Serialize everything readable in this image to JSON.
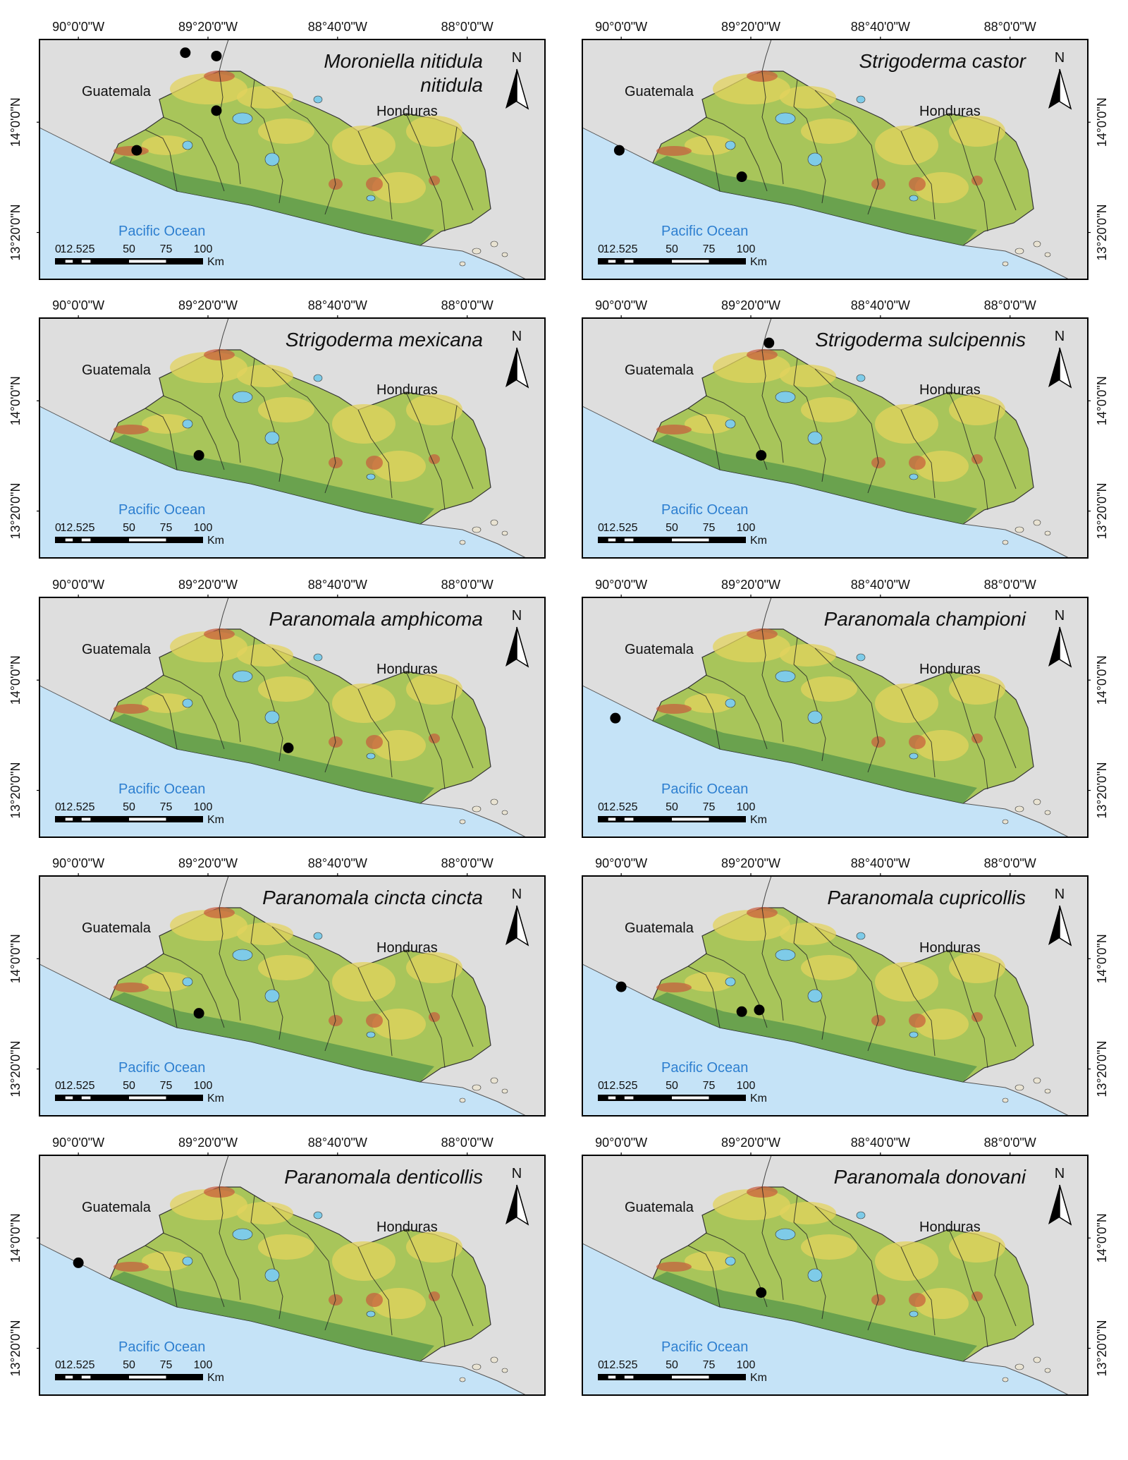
{
  "figure": {
    "lon_ticks": [
      "90°0'0\"W",
      "89°20'0\"W",
      "88°40'0\"W",
      "88°0'0\"W"
    ],
    "lat_ticks": [
      "14°0'0\"N",
      "13°20'0\"N"
    ],
    "labels": {
      "guatemala": "Guatemala",
      "honduras": "Honduras",
      "ocean": "Pacific Ocean",
      "north": "N",
      "scale_numbers": [
        "0",
        "12.525",
        "50",
        "75",
        "100"
      ],
      "scale_unit": "Km"
    },
    "colors": {
      "ocean": "#c5e3f7",
      "land_outside": "#dedede",
      "terrain_low": "#5f9b4c",
      "terrain_mid": "#a8c55a",
      "terrain_high": "#e3d35e",
      "terrain_peak": "#c85a3c",
      "lake": "#7ecbe8",
      "ocean_label": "#2d7fd0",
      "marker": "#000000"
    }
  },
  "panels": [
    {
      "title_lines": [
        "Moroniella nitidula",
        "nitidula"
      ],
      "records": [
        {
          "lon": -89.45,
          "lat": 14.42
        },
        {
          "lon": -89.29,
          "lat": 14.4
        },
        {
          "lon": -89.29,
          "lat": 14.07
        },
        {
          "lon": -89.7,
          "lat": 13.83
        }
      ]
    },
    {
      "title_lines": [
        "Strigoderma castor"
      ],
      "records": [
        {
          "lon": -90.01,
          "lat": 13.83
        },
        {
          "lon": -89.38,
          "lat": 13.67
        }
      ]
    },
    {
      "title_lines": [
        "Strigoderma mexicana"
      ],
      "records": [
        {
          "lon": -89.38,
          "lat": 13.67
        }
      ]
    },
    {
      "title_lines": [
        "Strigoderma sulcipennis"
      ],
      "records": [
        {
          "lon": -89.24,
          "lat": 14.35
        },
        {
          "lon": -89.28,
          "lat": 13.67
        }
      ]
    },
    {
      "title_lines": [
        "Paranomala amphicoma"
      ],
      "records": [
        {
          "lon": -88.92,
          "lat": 13.59
        }
      ]
    },
    {
      "title_lines": [
        "Paranomala championi"
      ],
      "records": [
        {
          "lon": -90.03,
          "lat": 13.77
        }
      ]
    },
    {
      "title_lines": [
        "Paranomala cincta cincta"
      ],
      "records": [
        {
          "lon": -89.38,
          "lat": 13.67
        }
      ]
    },
    {
      "title_lines": [
        "Paranomala cupricollis"
      ],
      "records": [
        {
          "lon": -90.0,
          "lat": 13.83
        },
        {
          "lon": -89.38,
          "lat": 13.68
        },
        {
          "lon": -89.29,
          "lat": 13.69
        }
      ]
    },
    {
      "title_lines": [
        "Paranomala denticollis"
      ],
      "records": [
        {
          "lon": -90.0,
          "lat": 13.85
        }
      ]
    },
    {
      "title_lines": [
        "Paranomala donovani"
      ],
      "records": [
        {
          "lon": -89.28,
          "lat": 13.67
        }
      ]
    }
  ]
}
